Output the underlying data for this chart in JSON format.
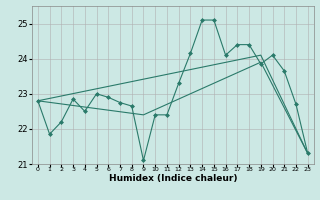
{
  "title": "",
  "xlabel": "Humidex (Indice chaleur)",
  "xlim": [
    -0.5,
    23.5
  ],
  "ylim": [
    21.0,
    25.5
  ],
  "yticks": [
    21,
    22,
    23,
    24,
    25
  ],
  "xticks": [
    0,
    1,
    2,
    3,
    4,
    5,
    6,
    7,
    8,
    9,
    10,
    11,
    12,
    13,
    14,
    15,
    16,
    17,
    18,
    19,
    20,
    21,
    22,
    23
  ],
  "bg_color": "#cce8e4",
  "grid_color": "#b0b0b0",
  "line_color": "#2a7a6a",
  "lines": [
    {
      "x": [
        0,
        1,
        2,
        3,
        4,
        5,
        6,
        7,
        8,
        9,
        10,
        11,
        12,
        13,
        14,
        15,
        16,
        17,
        18,
        19,
        20,
        21,
        22,
        23
      ],
      "y": [
        22.8,
        21.85,
        22.2,
        22.85,
        22.5,
        23.0,
        22.9,
        22.75,
        22.65,
        21.1,
        22.4,
        22.4,
        23.3,
        24.15,
        25.1,
        25.1,
        24.1,
        24.4,
        24.4,
        23.85,
        24.1,
        23.65,
        22.7,
        21.3
      ],
      "marker": "D",
      "markersize": 2.0,
      "linewidth": 0.8
    },
    {
      "x": [
        0,
        9,
        19,
        23
      ],
      "y": [
        22.8,
        22.4,
        23.9,
        21.3
      ],
      "marker": null,
      "linewidth": 0.8
    },
    {
      "x": [
        0,
        19,
        23
      ],
      "y": [
        22.8,
        24.1,
        21.3
      ],
      "marker": null,
      "linewidth": 0.8
    }
  ]
}
